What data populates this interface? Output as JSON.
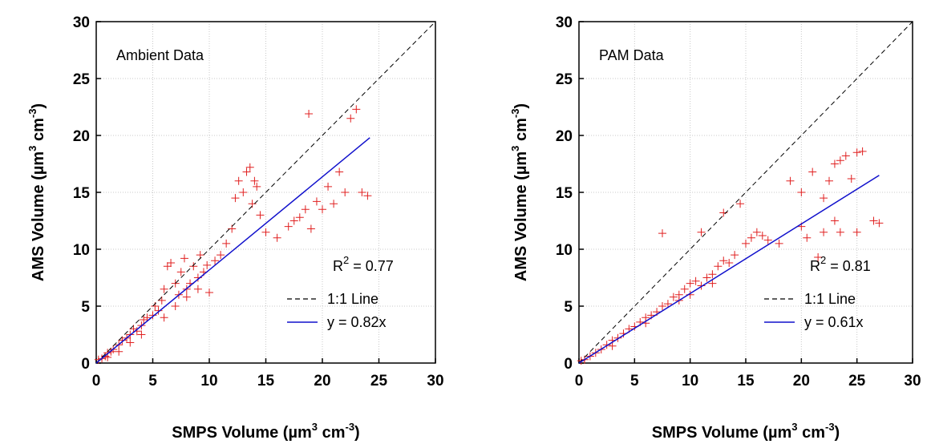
{
  "chart_data": [
    {
      "type": "scatter",
      "annotation": "Ambient Data",
      "stat_label": [
        "R",
        "2",
        " = 0.77"
      ],
      "xlabel": [
        "SMPS Volume (µm",
        "3",
        " cm",
        "-3",
        ")"
      ],
      "ylabel": [
        "AMS Volume (µm",
        "3",
        " cm",
        "-3",
        ")"
      ],
      "xlim": [
        0,
        30
      ],
      "ylim": [
        0,
        30
      ],
      "xticks": [
        0,
        5,
        10,
        15,
        20,
        25,
        30
      ],
      "yticks": [
        0,
        5,
        10,
        15,
        20,
        25,
        30
      ],
      "grid": true,
      "legend": "lower right",
      "series": [
        {
          "color": "#e02020",
          "marker": "+",
          "x": [
            0.2,
            0.5,
            0.8,
            1,
            1.3,
            1.5,
            2,
            2.3,
            2.7,
            3,
            3.3,
            3.6,
            4,
            4.2,
            4.5,
            5,
            5.2,
            5.5,
            5.8,
            6,
            6.3,
            6.6,
            7,
            7.3,
            7.5,
            7.8,
            8,
            8.3,
            8.6,
            9,
            9.2,
            9.5,
            9.8,
            10,
            10.5,
            11,
            11.5,
            12,
            12.3,
            12.6,
            13,
            13.3,
            13.6,
            14,
            14.2,
            13.8,
            14.5,
            15,
            16,
            17,
            17.5,
            18,
            18.5,
            19,
            19.5,
            20,
            20.5,
            21,
            21.5,
            22,
            22.5,
            23,
            18.8,
            23.5,
            24,
            3,
            4,
            6,
            7,
            8,
            9,
            2,
            1
          ],
          "values": [
            0.3,
            0.4,
            0.6,
            0.9,
            1,
            1.2,
            1.6,
            2,
            2.2,
            2.5,
            3,
            2.8,
            3.3,
            3.8,
            4,
            4.2,
            5,
            4.6,
            5.5,
            6.5,
            8.5,
            8.8,
            7,
            6,
            8,
            9.2,
            6.5,
            7,
            8.5,
            7.5,
            9.5,
            8,
            8.6,
            6.2,
            9,
            9.5,
            10.5,
            11.8,
            14.5,
            16,
            15,
            16.8,
            17.2,
            16,
            15.5,
            14,
            13,
            11.5,
            11,
            12,
            12.5,
            12.8,
            13.5,
            11.8,
            14.2,
            13.5,
            15.5,
            14,
            16.8,
            15,
            21.5,
            22.3,
            21.9,
            15,
            14.7,
            1.8,
            2.5,
            4,
            5,
            5.8,
            6.5,
            1,
            0.5
          ]
        },
        {
          "name": "1:1 Line",
          "color": "#000000",
          "dash": true,
          "x": [
            0,
            30
          ],
          "values": [
            0,
            30
          ]
        },
        {
          "name": "y = 0.82x",
          "color": "#1010cc",
          "x": [
            0,
            24.2
          ],
          "values": [
            0,
            19.8
          ]
        }
      ]
    },
    {
      "type": "scatter",
      "annotation": "PAM Data",
      "stat_label": [
        "R",
        "2",
        " = 0.81"
      ],
      "xlabel": [
        "SMPS Volume (µm",
        "3",
        " cm",
        "-3",
        ")"
      ],
      "ylabel": [
        "AMS Volume (µm",
        "3",
        " cm",
        "-3",
        ")"
      ],
      "xlim": [
        0,
        30
      ],
      "ylim": [
        0,
        30
      ],
      "xticks": [
        0,
        5,
        10,
        15,
        20,
        25,
        30
      ],
      "yticks": [
        0,
        5,
        10,
        15,
        20,
        25,
        30
      ],
      "grid": true,
      "legend": "lower right",
      "series": [
        {
          "color": "#e02020",
          "marker": "+",
          "x": [
            0.2,
            0.5,
            1,
            1.5,
            2,
            2.5,
            3,
            3.5,
            4,
            4.5,
            5,
            5.5,
            6,
            6.5,
            7,
            7.5,
            8,
            8.5,
            9,
            9.5,
            10,
            10.5,
            11,
            12,
            12.5,
            13,
            13.5,
            14,
            15,
            15.5,
            16,
            16.5,
            17,
            18,
            7.5,
            11,
            13,
            14.5,
            19,
            20,
            21,
            22,
            22.5,
            23,
            23.5,
            24,
            25,
            25.5,
            24.5,
            21.5,
            22,
            23,
            23.5,
            25,
            26.5,
            27,
            20,
            20.5,
            3,
            6,
            9,
            10,
            12,
            11.5
          ],
          "values": [
            0.2,
            0.3,
            0.6,
            0.9,
            1.2,
            1.6,
            2,
            2.2,
            2.6,
            3,
            3.2,
            3.6,
            4,
            4.2,
            4.5,
            5,
            5.2,
            5.8,
            6,
            6.5,
            7,
            7.2,
            6.8,
            7.8,
            8.5,
            9,
            8.8,
            9.5,
            10.5,
            11,
            11.5,
            11.2,
            10.8,
            10.5,
            11.4,
            11.5,
            13.2,
            14,
            16,
            15,
            16.8,
            14.5,
            16,
            17.5,
            17.8,
            18.2,
            18.5,
            18.6,
            16.2,
            9.3,
            11.5,
            12.5,
            11.5,
            11.5,
            12.5,
            12.3,
            12,
            11,
            1.5,
            3.5,
            5.5,
            6,
            7,
            7.5
          ]
        },
        {
          "name": "1:1 Line",
          "color": "#000000",
          "dash": true,
          "x": [
            0,
            30
          ],
          "values": [
            0,
            30
          ]
        },
        {
          "name": "y =  0.61x",
          "color": "#1010cc",
          "x": [
            0,
            27
          ],
          "values": [
            0,
            16.5
          ]
        }
      ]
    }
  ]
}
